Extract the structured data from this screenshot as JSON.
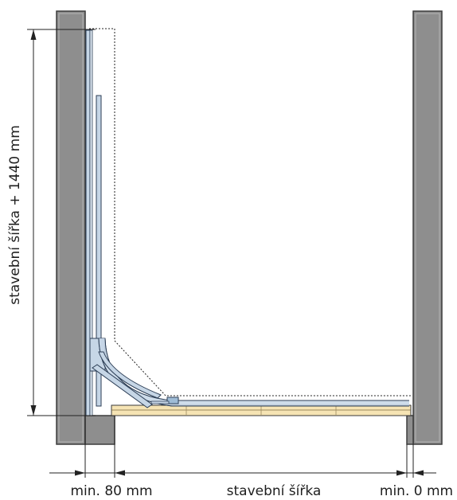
{
  "labels": {
    "height_dimension": "stavební šířka + 1440 mm",
    "left_min": "min. 80 mm",
    "width_dimension": "stavební šířka",
    "right_min": "min. 0 mm"
  },
  "colors": {
    "wall_fill": "#8e8e8e",
    "wall_stroke": "#3c3c3c",
    "profile_fill": "#c6d6e6",
    "profile_stroke": "#2c3e56",
    "base_fill": "#f6e4b4",
    "line": "#222222"
  }
}
